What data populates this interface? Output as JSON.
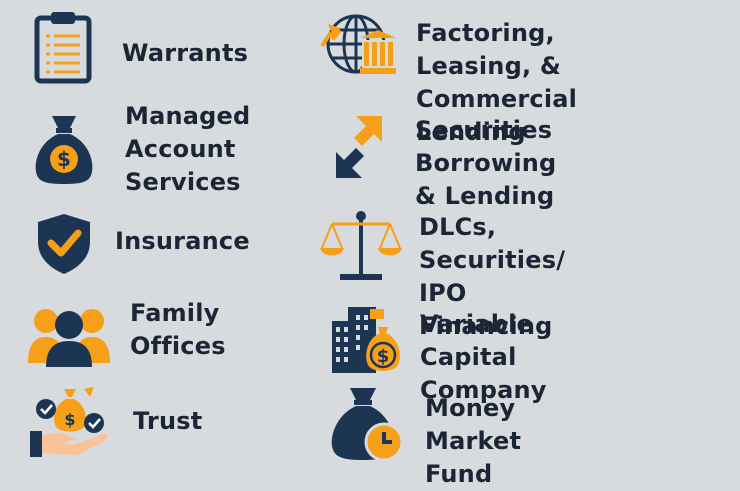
{
  "colors": {
    "navy": "#1c3553",
    "orange": "#f6a01a",
    "text": "#1b2535",
    "background": "#d7dbdd"
  },
  "items": [
    {
      "label": "Warrants",
      "icon": "clipboard-icon"
    },
    {
      "label": "Managed\nAccount\nServices",
      "icon": "money-bag-icon"
    },
    {
      "label": "Insurance",
      "icon": "shield-check-icon"
    },
    {
      "label": "Family\nOffices",
      "icon": "people-icon"
    },
    {
      "label": "Trust",
      "icon": "hand-money-icon"
    },
    {
      "label": "Factoring, Leasing, &\nCommercial Lending",
      "icon": "globe-bank-icon"
    },
    {
      "label": "Securities Borrowing\n& Lending",
      "icon": "exchange-arrows-icon"
    },
    {
      "label": "DLCs, Securities/\nIPO Financing",
      "icon": "balance-scale-icon"
    },
    {
      "label": "Variable Capital\nCompany",
      "icon": "building-money-icon"
    },
    {
      "label": "Money\nMarket Fund",
      "icon": "money-bag-clock-icon"
    }
  ]
}
